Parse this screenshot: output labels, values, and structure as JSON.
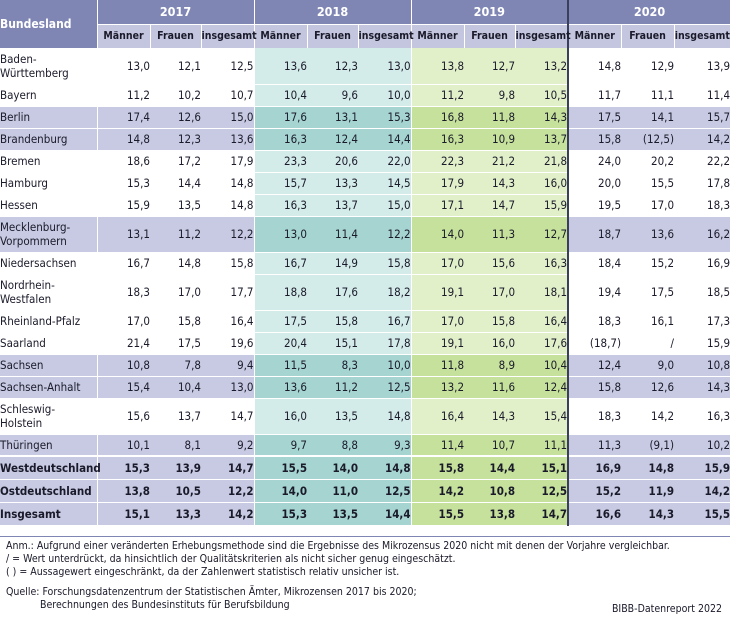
{
  "table": {
    "header_land": "Bundesland",
    "years": [
      "2017",
      "2018",
      "2019",
      "2020"
    ],
    "subheaders": [
      "Männer",
      "Frauen",
      "insgesamt"
    ],
    "rows": [
      {
        "name": "Baden-Württemberg",
        "name_lines": [
          "Baden-",
          "Württemberg"
        ],
        "type": "west",
        "values": [
          "13,0",
          "12,1",
          "12,5",
          "13,6",
          "12,3",
          "13,0",
          "13,8",
          "12,7",
          "13,2",
          "14,8",
          "12,9",
          "13,9"
        ]
      },
      {
        "name": "Bayern",
        "name_lines": [
          "Bayern"
        ],
        "type": "west",
        "values": [
          "11,2",
          "10,2",
          "10,7",
          "10,4",
          "9,6",
          "10,0",
          "11,2",
          "9,8",
          "10,5",
          "11,7",
          "11,1",
          "11,4"
        ]
      },
      {
        "name": "Berlin",
        "name_lines": [
          "Berlin"
        ],
        "type": "ost",
        "values": [
          "17,4",
          "12,6",
          "15,0",
          "17,6",
          "13,1",
          "15,3",
          "16,8",
          "11,8",
          "14,3",
          "17,5",
          "14,1",
          "15,7"
        ]
      },
      {
        "name": "Brandenburg",
        "name_lines": [
          "Brandenburg"
        ],
        "type": "ost",
        "values": [
          "14,8",
          "12,3",
          "13,6",
          "16,3",
          "12,4",
          "14,4",
          "16,3",
          "10,9",
          "13,7",
          "15,8",
          "(12,5)",
          "14,2"
        ]
      },
      {
        "name": "Bremen",
        "name_lines": [
          "Bremen"
        ],
        "type": "west",
        "values": [
          "18,6",
          "17,2",
          "17,9",
          "23,3",
          "20,6",
          "22,0",
          "22,3",
          "21,2",
          "21,8",
          "24,0",
          "20,2",
          "22,2"
        ]
      },
      {
        "name": "Hamburg",
        "name_lines": [
          "Hamburg"
        ],
        "type": "west",
        "values": [
          "15,3",
          "14,4",
          "14,8",
          "15,7",
          "13,3",
          "14,5",
          "17,9",
          "14,3",
          "16,0",
          "20,0",
          "15,5",
          "17,8"
        ]
      },
      {
        "name": "Hessen",
        "name_lines": [
          "Hessen"
        ],
        "type": "west",
        "values": [
          "15,9",
          "13,5",
          "14,8",
          "16,3",
          "13,7",
          "15,0",
          "17,1",
          "14,7",
          "15,9",
          "19,5",
          "17,0",
          "18,3"
        ]
      },
      {
        "name": "Mecklenburg-Vorpommern",
        "name_lines": [
          "Mecklenburg-",
          "Vorpommern"
        ],
        "type": "ost",
        "values": [
          "13,1",
          "11,2",
          "12,2",
          "13,0",
          "11,4",
          "12,2",
          "14,0",
          "11,3",
          "12,7",
          "18,7",
          "13,6",
          "16,2"
        ]
      },
      {
        "name": "Niedersachsen",
        "name_lines": [
          "Niedersachsen"
        ],
        "type": "west",
        "values": [
          "16,7",
          "14,8",
          "15,8",
          "16,7",
          "14,9",
          "15,8",
          "17,0",
          "15,6",
          "16,3",
          "18,4",
          "15,2",
          "16,9"
        ]
      },
      {
        "name": "Nordrhein-Westfalen",
        "name_lines": [
          "Nordrhein-",
          "Westfalen"
        ],
        "type": "west",
        "values": [
          "18,3",
          "17,0",
          "17,7",
          "18,8",
          "17,6",
          "18,2",
          "19,1",
          "17,0",
          "18,1",
          "19,4",
          "17,5",
          "18,5"
        ]
      },
      {
        "name": "Rheinland-Pfalz",
        "name_lines": [
          "Rheinland-Pfalz"
        ],
        "type": "west",
        "values": [
          "17,0",
          "15,8",
          "16,4",
          "17,5",
          "15,8",
          "16,7",
          "17,0",
          "15,8",
          "16,4",
          "18,3",
          "16,1",
          "17,3"
        ]
      },
      {
        "name": "Saarland",
        "name_lines": [
          "Saarland"
        ],
        "type": "west",
        "values": [
          "21,4",
          "17,5",
          "19,6",
          "20,4",
          "15,1",
          "17,8",
          "19,1",
          "16,0",
          "17,6",
          "(18,7)",
          "/",
          "15,9"
        ]
      },
      {
        "name": "Sachsen",
        "name_lines": [
          "Sachsen"
        ],
        "type": "ost",
        "values": [
          "10,8",
          "7,8",
          "9,4",
          "11,5",
          "8,3",
          "10,0",
          "11,8",
          "8,9",
          "10,4",
          "12,4",
          "9,0",
          "10,8"
        ]
      },
      {
        "name": "Sachsen-Anhalt",
        "name_lines": [
          "Sachsen-Anhalt"
        ],
        "type": "ost",
        "values": [
          "15,4",
          "10,4",
          "13,0",
          "13,6",
          "11,2",
          "12,5",
          "13,2",
          "11,6",
          "12,4",
          "15,8",
          "12,6",
          "14,3"
        ]
      },
      {
        "name": "Schleswig-Holstein",
        "name_lines": [
          "Schleswig-",
          "Holstein"
        ],
        "type": "west",
        "values": [
          "15,6",
          "13,7",
          "14,7",
          "16,0",
          "13,5",
          "14,8",
          "16,4",
          "14,3",
          "15,4",
          "18,3",
          "14,2",
          "16,3"
        ]
      },
      {
        "name": "Thüringen",
        "name_lines": [
          "Thüringen"
        ],
        "type": "ost",
        "values": [
          "10,1",
          "8,1",
          "9,2",
          "9,7",
          "8,8",
          "9,3",
          "11,4",
          "10,7",
          "11,1",
          "11,3",
          "(9,1)",
          "10,2"
        ]
      },
      {
        "name": "Westdeutschland",
        "name_lines": [
          "Westdeutschland"
        ],
        "type": "total",
        "values": [
          "15,3",
          "13,9",
          "14,7",
          "15,5",
          "14,0",
          "14,8",
          "15,8",
          "14,4",
          "15,1",
          "16,9",
          "14,8",
          "15,9"
        ]
      },
      {
        "name": "Ostdeutschland",
        "name_lines": [
          "Ostdeutschland"
        ],
        "type": "total",
        "values": [
          "13,8",
          "10,5",
          "12,2",
          "14,0",
          "11,0",
          "12,5",
          "14,2",
          "10,8",
          "12,5",
          "15,2",
          "11,9",
          "14,2"
        ]
      },
      {
        "name": "Insgesamt",
        "name_lines": [
          "Insgesamt"
        ],
        "type": "total",
        "values": [
          "15,1",
          "13,3",
          "14,2",
          "15,3",
          "13,5",
          "14,4",
          "15,5",
          "13,8",
          "14,7",
          "16,6",
          "14,3",
          "15,5"
        ]
      }
    ]
  },
  "notes": {
    "anm": "Anm.: Aufgrund einer veränderten Erhebungsmethode sind die Ergebnisse des Mikrozensus 2020 nicht mit denen der Vorjahre vergleichbar.",
    "slash": "/ = Wert unterdrückt, da hinsichtlich der Qualitätskriterien als nicht sicher genug eingeschätzt.",
    "paren": "( ) = Aussagewert eingeschränkt, da der Zahlenwert statistisch relativ unsicher ist.",
    "quelle1": "Quelle: Forschungsdatenzentrum der Statistischen Ämter, Mikrozensen 2017 bis 2020;",
    "quelle2": "Berechnungen des Bundesinstituts für Berufsbildung",
    "credit": "BIBB-Datenreport 2022"
  },
  "colors": {
    "header_dark": "#7f86b4",
    "header_light": "#c3c6de",
    "west": [
      "#ffffff",
      "#d3ebe9",
      "#e1f0c9",
      "#ffffff"
    ],
    "ost": [
      "#c7cae2",
      "#a5d4d1",
      "#c5e19b",
      "#c7cae2"
    ],
    "total": [
      "#c7cae2",
      "#a5d4d1",
      "#c5e19b",
      "#c7cae2"
    ]
  }
}
